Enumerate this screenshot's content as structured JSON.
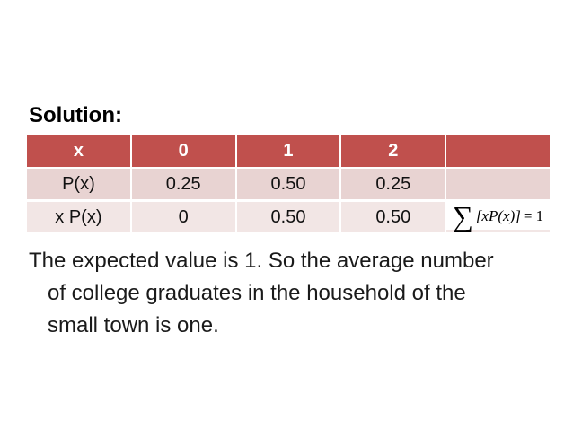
{
  "slide": {
    "heading": "Solution:",
    "table": {
      "header_row": [
        "x",
        "0",
        "1",
        "2",
        ""
      ],
      "rows": [
        {
          "label": "P(x)",
          "values": [
            "0.25",
            "0.50",
            "0.25",
            ""
          ]
        },
        {
          "label": "x P(x)",
          "values": [
            "0",
            "0.50",
            "0.50"
          ]
        }
      ],
      "formula": {
        "sigma": "∑",
        "expr": "[xP(x)]",
        "equals": "= 1"
      }
    },
    "paragraph_lines": [
      "The expected value is 1. So the average number",
      "of college graduates in the household of the",
      "small town is one."
    ],
    "colors": {
      "header_bg": "#c0504d",
      "row_px_bg": "#e8d3d2",
      "row_xpx_bg": "#f2e6e5",
      "header_text": "#ffffff",
      "body_text": "#1a1a1a"
    }
  }
}
